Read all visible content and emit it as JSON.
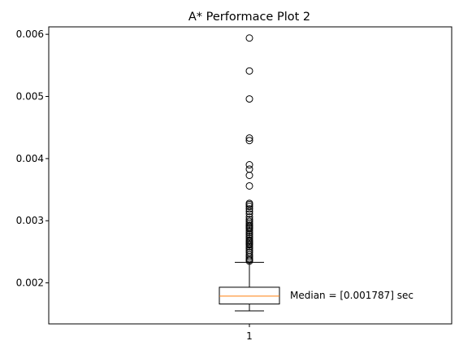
{
  "chart_data": {
    "type": "box",
    "title": "A* Performace Plot 2",
    "xlabel": "",
    "ylabel": "",
    "categories": [
      "1"
    ],
    "ylim": [
      0.00134,
      0.00612
    ],
    "yticks": [
      0.002,
      0.003,
      0.004,
      0.005,
      0.006
    ],
    "ytick_labels": [
      "0.002",
      "0.003",
      "0.004",
      "0.005",
      "0.006"
    ],
    "grid": false,
    "box": {
      "whisker_low": 0.00155,
      "q1": 0.00166,
      "median": 0.001787,
      "q3": 0.00193,
      "whisker_high": 0.00233
    },
    "outliers": [
      0.00235,
      0.00237,
      0.00239,
      0.00242,
      0.00245,
      0.00249,
      0.00252,
      0.00255,
      0.00258,
      0.00261,
      0.00263,
      0.00265,
      0.00267,
      0.00269,
      0.00272,
      0.00275,
      0.00278,
      0.00281,
      0.00284,
      0.00287,
      0.00289,
      0.00291,
      0.00293,
      0.00296,
      0.00299,
      0.00302,
      0.00306,
      0.00311,
      0.00315,
      0.00319,
      0.00323,
      0.00326,
      0.00328,
      0.00356,
      0.00373,
      0.00383,
      0.0039,
      0.00429,
      0.00433,
      0.00496,
      0.00541,
      0.00594
    ],
    "annotation": "Median = [0.001787] sec",
    "colors": {
      "median": "#ff7f0e",
      "box": "#000000",
      "outlier": "#000000"
    }
  }
}
